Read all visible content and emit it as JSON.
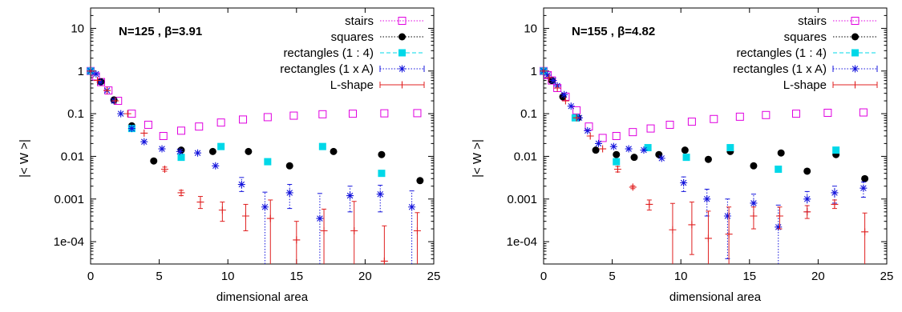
{
  "chart_data": [
    {
      "type": "scatter",
      "title": "N=125 , β=3.91",
      "xlabel": "dimensional  area",
      "ylabel": "|< W >|",
      "xlim": [
        0,
        25
      ],
      "ylim": [
        3e-05,
        30
      ],
      "yscale": "log",
      "grid": false,
      "legend_position": "top-right",
      "x_ticks": [
        0,
        5,
        10,
        15,
        20,
        25
      ],
      "x_tick_labels": [
        "0",
        "5",
        "10",
        "15",
        "20",
        "25"
      ],
      "y_ticks": [
        10,
        1,
        0.1,
        0.01,
        0.001,
        0.0001
      ],
      "y_tick_labels": [
        "10",
        "1",
        "0.1",
        "0.01",
        "0.001",
        "1e-04"
      ],
      "series": [
        {
          "name": "stairs",
          "color": "#e000e0",
          "marker": "open-square",
          "line": "dotted",
          "x": [
            0,
            0.38,
            0.76,
            1.3,
            2.0,
            3.0,
            4.2,
            5.3,
            6.6,
            7.9,
            9.5,
            11.1,
            12.9,
            14.8,
            16.9,
            19.1,
            21.4,
            23.8
          ],
          "y": [
            1.0,
            0.75,
            0.55,
            0.35,
            0.2,
            0.1,
            0.055,
            0.03,
            0.04,
            0.05,
            0.062,
            0.073,
            0.083,
            0.09,
            0.097,
            0.1,
            0.102,
            0.103
          ]
        },
        {
          "name": "squares",
          "color": "#000000",
          "marker": "filled-circle",
          "line": "dotted",
          "x": [
            0,
            0.75,
            1.7,
            3.0,
            4.6,
            6.6,
            8.9,
            11.5,
            14.5,
            17.7,
            21.2,
            24.0
          ],
          "y": [
            1.0,
            0.56,
            0.21,
            0.052,
            0.0078,
            0.014,
            0.013,
            0.013,
            0.006,
            0.013,
            0.011,
            0.0027
          ]
        },
        {
          "name": "rectangles (1 : 4)",
          "color": "#00d8e8",
          "marker": "filled-square",
          "line": "dashed",
          "x": [
            0,
            3.0,
            6.6,
            9.5,
            12.9,
            16.9,
            21.2
          ],
          "y": [
            1.0,
            0.045,
            0.0095,
            0.017,
            0.0075,
            0.017,
            0.004
          ]
        },
        {
          "name": "rectangles (1 x A)",
          "color": "#1414dc",
          "marker": "star",
          "line": "dotted",
          "x": [
            0,
            0.4,
            0.7,
            1.2,
            1.7,
            2.2,
            3.0,
            3.9,
            5.2,
            6.5,
            7.8,
            9.1,
            11.0,
            12.7,
            14.5,
            16.7,
            18.9,
            21.1,
            23.4
          ],
          "y": [
            1.0,
            0.85,
            0.55,
            0.35,
            0.2,
            0.1,
            0.045,
            0.022,
            0.015,
            0.013,
            0.012,
            0.006,
            0.0022,
            0.00065,
            0.0014,
            0.00035,
            0.0012,
            0.0013,
            0.00065
          ],
          "err_lo": [
            0,
            0,
            0,
            0,
            0,
            0,
            0,
            0,
            0,
            0,
            0,
            0,
            0.0007,
            0.00062,
            0.0008,
            0.00033,
            0.0007,
            0.0008,
            0.00063
          ],
          "err_hi": [
            0,
            0,
            0,
            0,
            0,
            0,
            0,
            0,
            0,
            0,
            0,
            0,
            0.001,
            0.0008,
            0.0008,
            0.001,
            0.0008,
            0.0008,
            0.0009
          ]
        },
        {
          "name": "L-shape",
          "color": "#e02020",
          "marker": "plus",
          "line": "solid",
          "x": [
            0,
            0.5,
            1.2,
            1.8,
            2.7,
            3.9,
            5.4,
            6.6,
            8.0,
            9.6,
            11.3,
            13.1,
            15.0,
            17.0,
            19.2,
            21.4,
            23.8
          ],
          "y": [
            1.0,
            0.6,
            0.35,
            0.2,
            0.1,
            0.035,
            0.005,
            0.0014,
            0.00085,
            0.00055,
            0.0004,
            0.00035,
            0.00011,
            0.00018,
            0.00018,
            3.5e-05,
            0.00018
          ],
          "err_lo": [
            0,
            0,
            0,
            0,
            0,
            0,
            0.0005,
            0.0002,
            0.00025,
            0.00025,
            0.00022,
            0.00033,
            0.0001,
            0.00017,
            0.00017,
            3e-05,
            0.00017
          ],
          "err_hi": [
            0,
            0,
            0,
            0,
            0,
            0,
            0.0006,
            0.0002,
            0.0003,
            0.0003,
            0.00035,
            0.0006,
            0.00019,
            0.0004,
            0.0007,
            0.0002,
            0.0003
          ]
        }
      ]
    },
    {
      "type": "scatter",
      "title": "N=155 , β=4.82",
      "xlabel": "dimensional  area",
      "ylabel": "|< W >|",
      "xlim": [
        0,
        25
      ],
      "ylim": [
        3e-05,
        30
      ],
      "yscale": "log",
      "grid": false,
      "legend_position": "top-right",
      "x_ticks": [
        0,
        5,
        10,
        15,
        20,
        25
      ],
      "x_tick_labels": [
        "0",
        "5",
        "10",
        "15",
        "20",
        "25"
      ],
      "y_ticks": [
        10,
        1,
        0.1,
        0.01,
        0.001,
        0.0001
      ],
      "y_tick_labels": [
        "10",
        "1",
        "0.1",
        "0.01",
        "0.001",
        "1e-04"
      ],
      "series": [
        {
          "name": "stairs",
          "color": "#e000e0",
          "marker": "open-square",
          "line": "dotted",
          "x": [
            0,
            0.3,
            0.6,
            1.0,
            1.6,
            2.4,
            3.3,
            4.3,
            5.3,
            6.5,
            7.8,
            9.2,
            10.8,
            12.4,
            14.3,
            16.2,
            18.4,
            20.7,
            23.3
          ],
          "y": [
            1.0,
            0.8,
            0.6,
            0.4,
            0.25,
            0.12,
            0.05,
            0.027,
            0.03,
            0.037,
            0.045,
            0.055,
            0.065,
            0.075,
            0.085,
            0.093,
            0.1,
            0.105,
            0.107
          ]
        },
        {
          "name": "squares",
          "color": "#000000",
          "marker": "filled-circle",
          "line": "dotted",
          "x": [
            0,
            0.6,
            1.4,
            2.5,
            3.8,
            5.3,
            6.6,
            8.4,
            10.3,
            12.0,
            13.6,
            15.3,
            17.3,
            19.2,
            21.3,
            23.4
          ],
          "y": [
            1.0,
            0.6,
            0.25,
            0.08,
            0.014,
            0.011,
            0.0095,
            0.011,
            0.014,
            0.0085,
            0.013,
            0.006,
            0.012,
            0.0045,
            0.011,
            0.003
          ]
        },
        {
          "name": "rectangles (1 : 4)",
          "color": "#00d8e8",
          "marker": "filled-square",
          "line": "dashed",
          "x": [
            0,
            2.3,
            5.3,
            7.6,
            10.4,
            13.6,
            17.1,
            21.3
          ],
          "y": [
            1.0,
            0.08,
            0.0075,
            0.016,
            0.0095,
            0.016,
            0.005,
            0.014
          ]
        },
        {
          "name": "rectangles (1 x A)",
          "color": "#1414dc",
          "marker": "star",
          "line": "dotted",
          "x": [
            0,
            0.3,
            0.7,
            1.0,
            1.5,
            2.0,
            2.6,
            3.2,
            4.0,
            5.1,
            6.2,
            7.3,
            8.6,
            10.2,
            11.9,
            13.4,
            15.3,
            17.1,
            19.2,
            21.2,
            23.3
          ],
          "y": [
            1.0,
            0.8,
            0.6,
            0.45,
            0.28,
            0.15,
            0.08,
            0.04,
            0.02,
            0.017,
            0.015,
            0.014,
            0.009,
            0.0024,
            0.001,
            0.0004,
            0.0008,
            0.00022,
            0.001,
            0.0014,
            0.0018
          ],
          "err_lo": [
            0,
            0,
            0,
            0,
            0,
            0,
            0,
            0,
            0,
            0,
            0,
            0,
            0,
            0.0009,
            0.0006,
            0.00036,
            0.0004,
            0.0002,
            0.0005,
            0.0006,
            0.0007
          ],
          "err_hi": [
            0,
            0,
            0,
            0,
            0,
            0,
            0,
            0,
            0,
            0,
            0,
            0,
            0,
            0.0009,
            0.0007,
            0.0006,
            0.0005,
            0.0005,
            0.0005,
            0.0006,
            0.0007
          ]
        },
        {
          "name": "L-shape",
          "color": "#e02020",
          "marker": "plus",
          "line": "solid",
          "x": [
            0,
            0.4,
            1.0,
            1.6,
            2.4,
            3.4,
            4.3,
            5.4,
            6.5,
            7.7,
            9.4,
            10.8,
            12.0,
            13.5,
            15.3,
            17.2,
            19.2,
            21.2,
            23.4
          ],
          "y": [
            1.0,
            0.7,
            0.4,
            0.2,
            0.08,
            0.03,
            0.015,
            0.005,
            0.0019,
            0.00075,
            0.00019,
            0.00025,
            0.00012,
            0.00015,
            0.0004,
            0.0004,
            0.0005,
            0.00075,
            0.00017
          ],
          "err_lo": [
            0,
            0,
            0,
            0,
            0,
            0,
            0,
            0.0007,
            0.00015,
            0.0002,
            0.00017,
            0.0002,
            0.00011,
            0.00014,
            0.0002,
            0.0002,
            0.00015,
            0.00015,
            0.00014
          ],
          "err_hi": [
            0,
            0,
            0,
            0,
            0,
            0,
            0,
            0.0008,
            0.00015,
            0.0002,
            0.0006,
            0.0006,
            0.0004,
            0.0005,
            0.00025,
            0.00025,
            0.0002,
            0.0002,
            0.0003
          ]
        }
      ]
    }
  ]
}
